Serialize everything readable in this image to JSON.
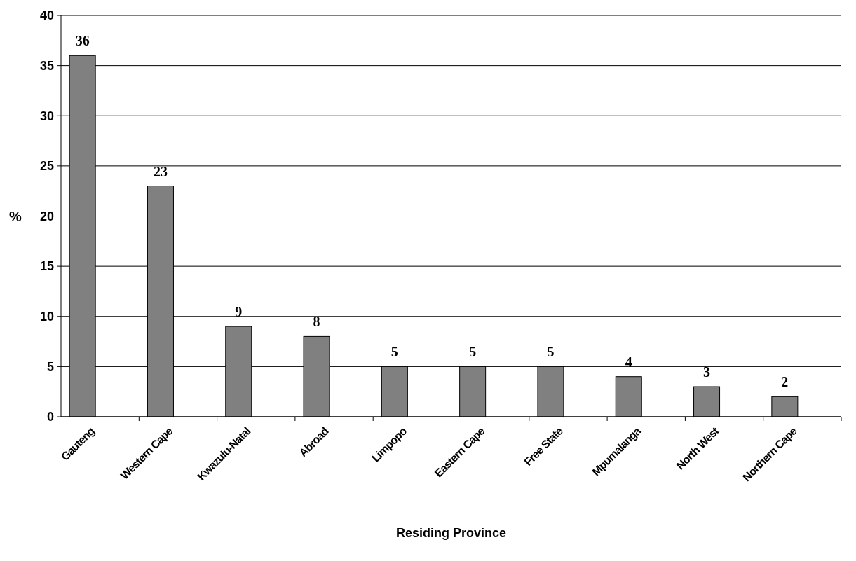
{
  "chart_data": {
    "type": "bar",
    "xlabel": "Residing Province",
    "ylabel": "%",
    "categories": [
      "Gauteng",
      "Western Cape",
      "Kwazulu-Natal",
      "Abroad",
      "Limpopo",
      "Eastern Cape",
      "Free State",
      "Mpumalanga",
      "North West",
      "Northern Cape"
    ],
    "values": [
      36,
      23,
      9,
      8,
      5,
      5,
      5,
      4,
      3,
      2
    ],
    "color": "#808080",
    "ylim": [
      0,
      40
    ],
    "yticks": [
      0,
      5,
      10,
      15,
      20,
      25,
      30,
      35,
      40
    ],
    "grid": "y",
    "data_labels": true
  }
}
